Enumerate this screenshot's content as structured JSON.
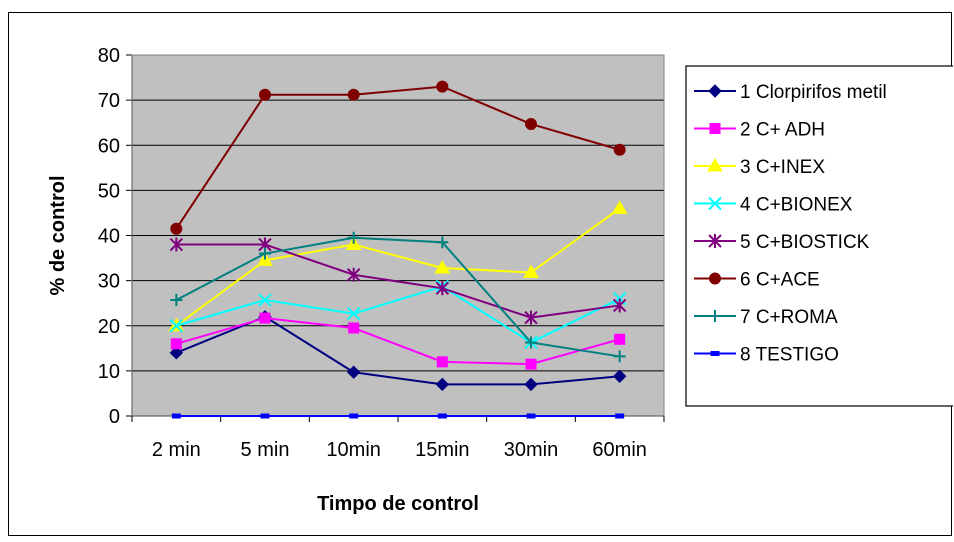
{
  "chart_data": {
    "type": "line",
    "title": "",
    "xlabel": "Timpo de  control",
    "ylabel": "% de control",
    "ylim": [
      0,
      80
    ],
    "yticks": [
      0,
      10,
      20,
      30,
      40,
      50,
      60,
      70,
      80
    ],
    "categories": [
      "2 min",
      "5 min",
      "10min",
      "15min",
      "30min",
      "60min"
    ],
    "grid": "horizontal",
    "plot_background": "#c0c0c0",
    "legend_position": "right",
    "series": [
      {
        "name": "1 Clorpirifos metil",
        "color": "#000080",
        "marker": "diamond",
        "values": [
          14,
          22,
          9.7,
          7,
          7,
          8.8
        ]
      },
      {
        "name": "2 C+ ADH",
        "color": "#ff00ff",
        "marker": "square",
        "values": [
          16,
          21.7,
          19.5,
          12,
          11.5,
          17
        ]
      },
      {
        "name": "3 C+INEX",
        "color": "#ffff00",
        "marker": "triangle",
        "values": [
          20,
          34.5,
          38,
          32.8,
          31.8,
          46
        ]
      },
      {
        "name": "4 C+BIONEX",
        "color": "#00ffff",
        "marker": "x",
        "values": [
          20,
          25.7,
          22.7,
          28.7,
          16.3,
          26
        ]
      },
      {
        "name": "5 C+BIOSTICK",
        "color": "#800080",
        "marker": "star",
        "values": [
          38,
          38,
          31.3,
          28.3,
          21.8,
          24.5
        ]
      },
      {
        "name": "6 C+ACE",
        "color": "#800000",
        "marker": "circle",
        "values": [
          41.5,
          71.2,
          71.2,
          73,
          64.7,
          59
        ]
      },
      {
        "name": "7 C+ROMA",
        "color": "#008080",
        "marker": "plus",
        "values": [
          25.7,
          36,
          39.5,
          38.5,
          16.3,
          13.2
        ]
      },
      {
        "name": "8 TESTIGO",
        "color": "#0000ff",
        "marker": "dash",
        "values": [
          0,
          0,
          0,
          0,
          0,
          0
        ]
      }
    ]
  }
}
